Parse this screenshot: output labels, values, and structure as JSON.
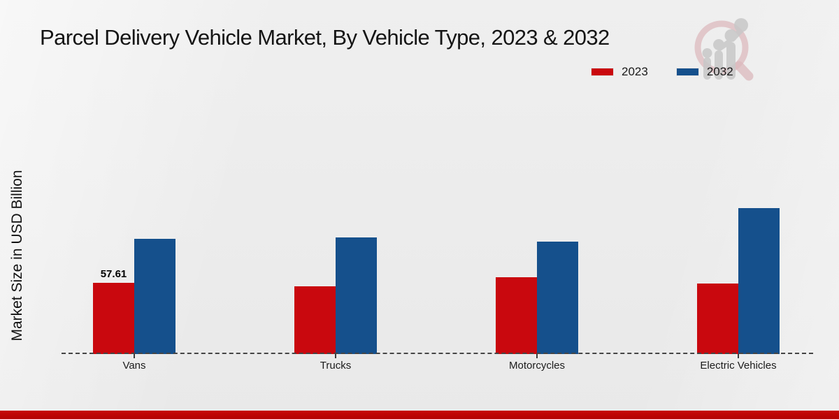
{
  "title": "Parcel Delivery Vehicle Market, By Vehicle Type, 2023 & 2032",
  "y_axis_label": "Market Size in USD Billion",
  "legend": [
    {
      "label": "2023",
      "color": "#c9080e"
    },
    {
      "label": "2032",
      "color": "#15508c"
    }
  ],
  "watermark_icon": "magnifier-bar-chart-logo",
  "footer_accent_color": "#c00808",
  "chart_data": {
    "type": "bar",
    "title": "Parcel Delivery Vehicle Market, By Vehicle Type, 2023 & 2032",
    "xlabel": "",
    "ylabel": "Market Size in USD Billion",
    "categories": [
      "Vans",
      "Trucks",
      "Motorcycles",
      "Electric Vehicles"
    ],
    "series": [
      {
        "name": "2023",
        "color": "#c9080e",
        "values": [
          57.61,
          54.8,
          62.1,
          57.0
        ]
      },
      {
        "name": "2032",
        "color": "#15508c",
        "values": [
          93.2,
          94.3,
          90.9,
          118.0
        ]
      }
    ],
    "data_labels": [
      {
        "series": "2023",
        "category": "Vans",
        "text": "57.61"
      }
    ],
    "ylim": [
      0,
      130
    ],
    "y_axis_ticks_visible": false,
    "grid": false,
    "legend_position": "top-right",
    "baseline_style": "dashed"
  }
}
